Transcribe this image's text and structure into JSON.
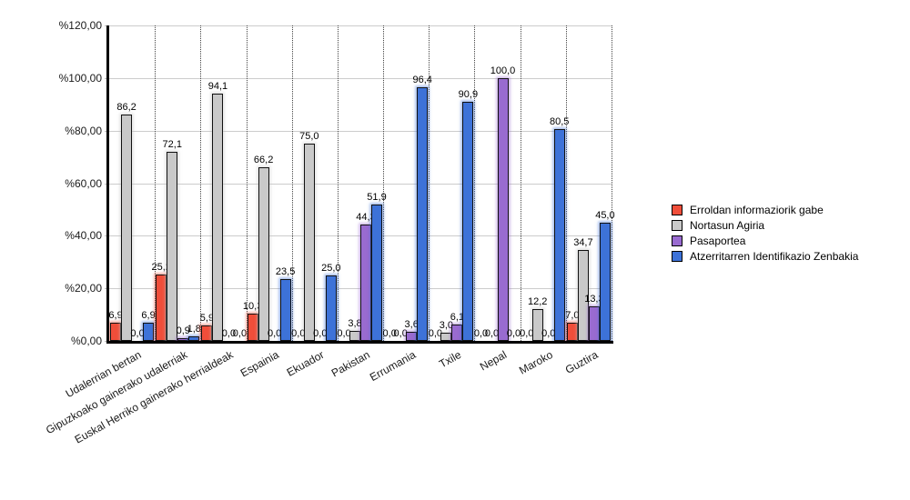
{
  "chart_data": {
    "type": "bar",
    "title": "",
    "xlabel": "",
    "ylabel": "",
    "grid": true,
    "legend_position": "right",
    "categories": [
      "Udalerrian bertan",
      "Gipuzkoako gainerako udalerriak",
      "Euskal Herriko gainerako herrialdeak",
      "Espainia",
      "Ekuador",
      "Pakistan",
      "Errumania",
      "Txile",
      "Nepal",
      "Maroko",
      "Guztira"
    ],
    "series": [
      {
        "name": "Erroldan informaziorik gabe",
        "color": "#f04e3a",
        "values": [
          6.9,
          25.2,
          5.9,
          10.3,
          0.0,
          0.0,
          0.0,
          0.0,
          0.0,
          0.0,
          7.0
        ]
      },
      {
        "name": "Nortasun Agiria",
        "color": "#c9c9c9",
        "values": [
          86.2,
          72.1,
          94.1,
          66.2,
          75.0,
          3.8,
          0.0,
          3.0,
          0.0,
          12.2,
          34.7
        ]
      },
      {
        "name": "Pasaportea",
        "color": "#996bd0",
        "values": [
          0.0,
          0.9,
          0.0,
          0.0,
          0.0,
          44.3,
          3.6,
          6.1,
          100.0,
          0.0,
          13.3
        ]
      },
      {
        "name": "Atzerritarren Identifikazio Zenbakia",
        "color": "#3d72d8",
        "values": [
          6.9,
          1.8,
          0.0,
          23.5,
          25.0,
          51.9,
          96.4,
          90.9,
          0.0,
          80.5,
          45.0
        ]
      }
    ],
    "y_axis": {
      "min": 0,
      "max": 120,
      "step": 20,
      "tick_labels": [
        "%0,00",
        "%20,00",
        "%40,00",
        "%60,00",
        "%80,00",
        "%100,00",
        "%120,00"
      ]
    },
    "value_label_decimal_separator": ","
  }
}
